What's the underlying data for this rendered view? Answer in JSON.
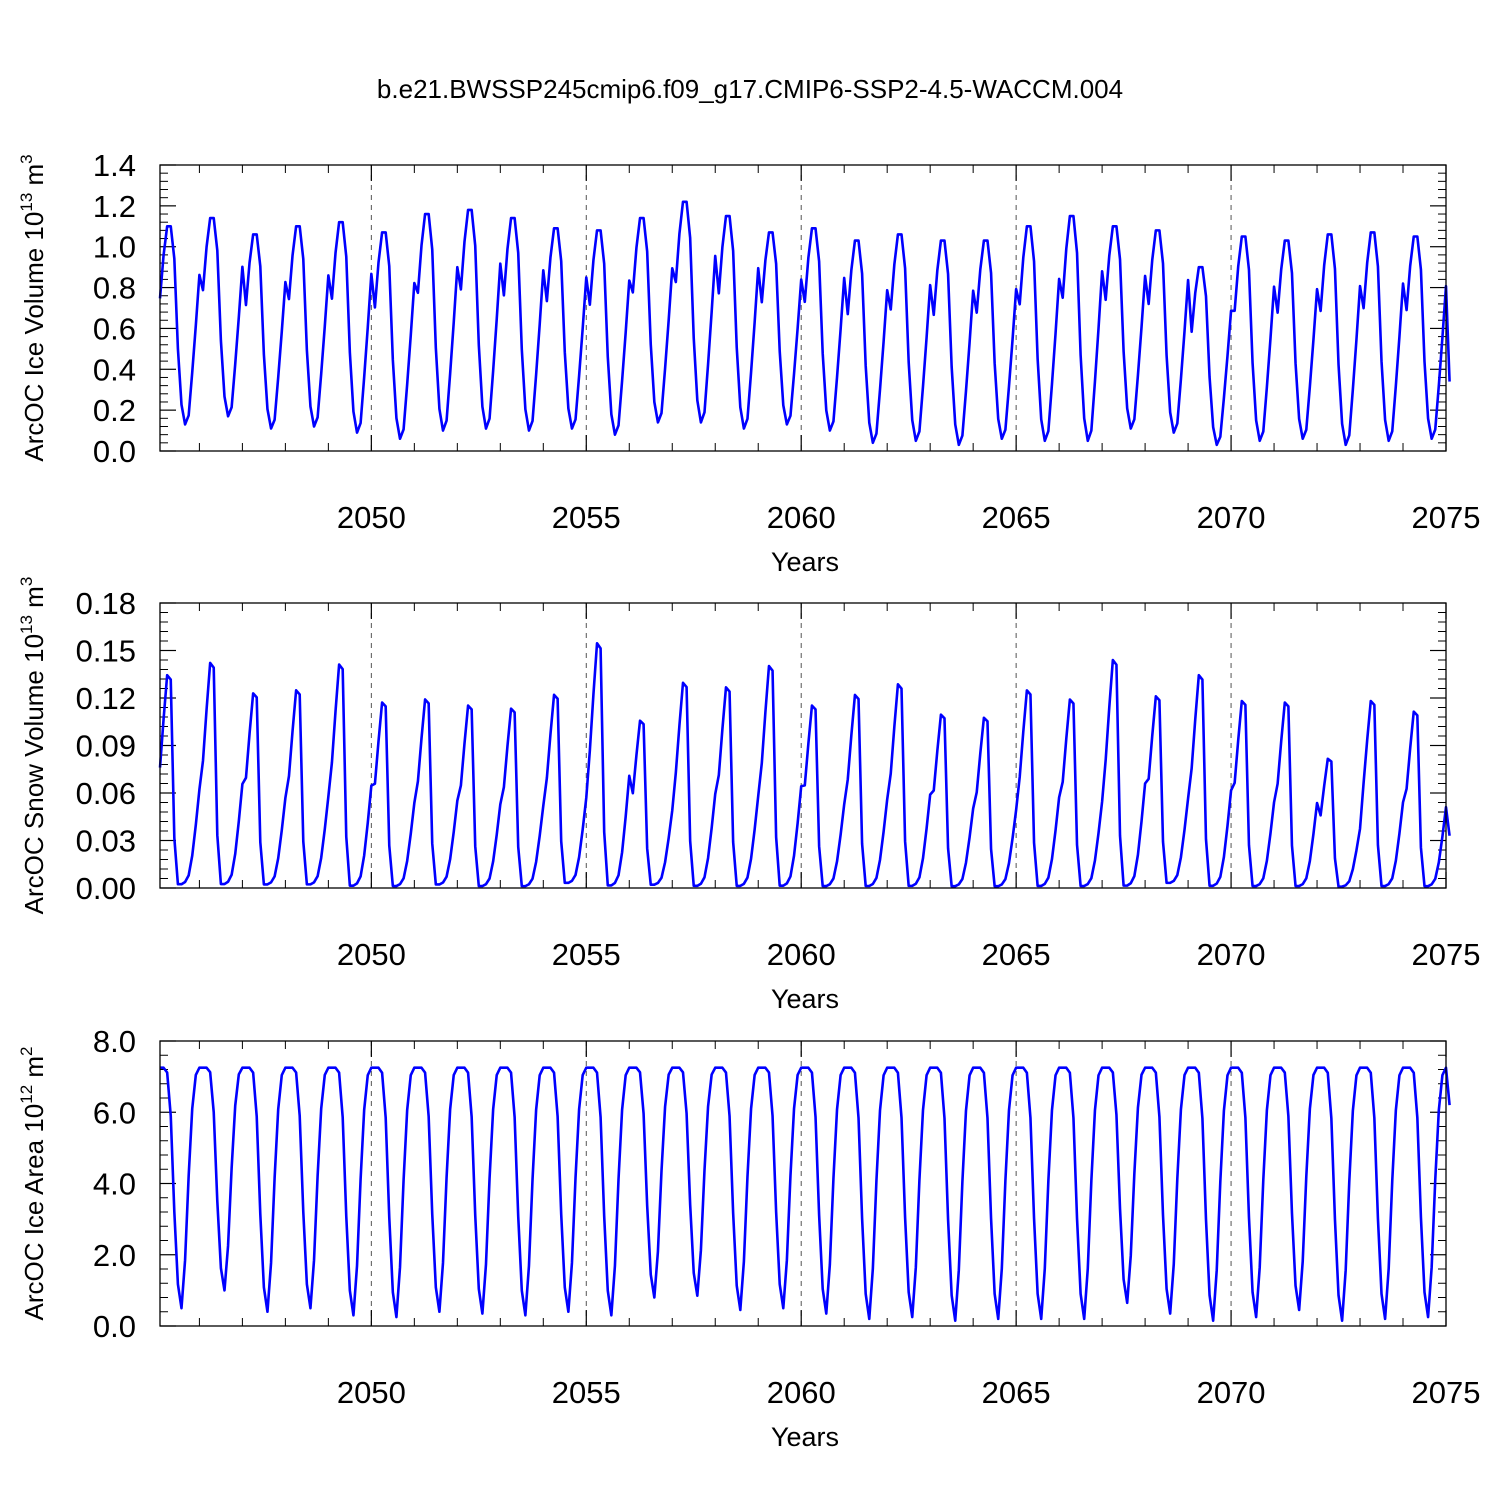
{
  "title": "b.e21.BWSSP245cmip6.f09_g17.CMIP6-SSP2-4.5-WACCM.004",
  "chart_data": [
    {
      "type": "line",
      "ylabel": {
        "prefix": "ArcOC Ice Volume 10",
        "exp": "13",
        "mid": " m",
        "unit_exp": "3"
      },
      "xlabel": "Years",
      "x_start": 2045.0833,
      "x_step": 0.083333,
      "xlim": [
        2045.0833,
        2075.0
      ],
      "ylim": [
        0.0,
        1.4
      ],
      "xticks": [
        2050,
        2055,
        2060,
        2065,
        2070,
        2075
      ],
      "yticks": [
        0.0,
        0.2,
        0.4,
        0.6,
        0.8,
        1.0,
        1.2,
        1.4
      ],
      "ytick_labels": [
        "0.0",
        "0.2",
        "0.4",
        "0.6",
        "0.8",
        "1.0",
        "1.2",
        "1.4"
      ],
      "grid": "vertical-dashed",
      "color": "#0000ff",
      "cycle": {
        "shape": [
          0.6364,
          0.8545,
          1.0,
          1.0,
          0.8364,
          0.3818,
          0.1,
          0.0,
          0.0455,
          0.2636,
          0.5,
          0.7545
        ],
        "peak": [
          1.1,
          1.14,
          1.06,
          1.1,
          1.12,
          1.07,
          1.16,
          1.18,
          1.14,
          1.09,
          1.08,
          1.14,
          1.22,
          1.15,
          1.07,
          1.09,
          1.03,
          1.06,
          1.03,
          1.03,
          1.1,
          1.15,
          1.1,
          1.08,
          0.9,
          1.05,
          1.03,
          1.06,
          1.07,
          1.05
        ],
        "trough": [
          0.13,
          0.17,
          0.11,
          0.12,
          0.09,
          0.06,
          0.1,
          0.11,
          0.1,
          0.11,
          0.08,
          0.14,
          0.14,
          0.11,
          0.13,
          0.1,
          0.04,
          0.05,
          0.03,
          0.06,
          0.05,
          0.05,
          0.11,
          0.09,
          0.03,
          0.05,
          0.06,
          0.03,
          0.05,
          0.06
        ],
        "end": 0.34
      }
    },
    {
      "type": "line",
      "ylabel": {
        "prefix": "ArcOC Snow Volume 10",
        "exp": "13",
        "mid": " m",
        "unit_exp": "3"
      },
      "xlabel": "Years",
      "x_start": 2045.0833,
      "x_step": 0.083333,
      "xlim": [
        2045.0833,
        2075.0
      ],
      "ylim": [
        0.0,
        0.18
      ],
      "xticks": [
        2050,
        2055,
        2060,
        2065,
        2070,
        2075
      ],
      "yticks": [
        0.0,
        0.03,
        0.06,
        0.09,
        0.12,
        0.15,
        0.18
      ],
      "ytick_labels": [
        "0.00",
        "0.03",
        "0.06",
        "0.09",
        "0.12",
        "0.15",
        "0.18"
      ],
      "grid": "vertical-dashed",
      "color": "#0000ff",
      "cycle": {
        "shape": [
          0.54,
          0.76,
          0.96,
          0.94,
          0.22,
          0.01,
          0.01,
          0.02,
          0.05,
          0.14,
          0.28,
          0.44
        ],
        "peak": [
          0.14,
          0.148,
          0.128,
          0.13,
          0.147,
          0.122,
          0.124,
          0.12,
          0.118,
          0.127,
          0.161,
          0.11,
          0.135,
          0.132,
          0.146,
          0.12,
          0.127,
          0.134,
          0.114,
          0.112,
          0.13,
          0.124,
          0.15,
          0.126,
          0.14,
          0.123,
          0.122,
          0.085,
          0.123,
          0.116
        ],
        "trough": [
          0.001,
          0.001,
          0.001,
          0.001,
          0.0,
          0.0,
          0.001,
          0.0,
          0.0,
          0.002,
          0.0,
          0.001,
          0.0,
          0.0,
          0.0,
          0.0,
          0.0,
          0.0,
          0.0,
          0.0,
          0.0,
          0.0,
          0.0,
          0.002,
          0.0,
          0.0,
          0.0,
          0.0,
          0.0,
          0.0
        ],
        "end": 0.033
      }
    },
    {
      "type": "line",
      "ylabel": {
        "prefix": "ArcOC Ice Area 10",
        "exp": "12",
        "mid": " m",
        "unit_exp": "2"
      },
      "xlabel": "Years",
      "x_start": 2045.0833,
      "x_step": 0.083333,
      "xlim": [
        2045.0833,
        2075.0
      ],
      "ylim": [
        0.0,
        8.0
      ],
      "xticks": [
        2050,
        2055,
        2060,
        2065,
        2070,
        2075
      ],
      "yticks": [
        0.0,
        2.0,
        4.0,
        6.0,
        8.0
      ],
      "ytick_labels": [
        "0.0",
        "2.0",
        "4.0",
        "6.0",
        "8.0"
      ],
      "grid": "vertical-dashed",
      "color": "#0000ff",
      "cycle": {
        "shape": [
          1.0,
          1.0,
          0.98,
          0.8,
          0.4,
          0.1,
          0.0,
          0.2,
          0.55,
          0.83,
          0.97,
          1.0
        ],
        "peak": [
          7.25,
          7.25,
          7.25,
          7.25,
          7.25,
          7.25,
          7.25,
          7.25,
          7.25,
          7.25,
          7.25,
          7.25,
          7.25,
          7.25,
          7.25,
          7.25,
          7.25,
          7.25,
          7.25,
          7.25,
          7.25,
          7.25,
          7.25,
          7.25,
          7.25,
          7.25,
          7.25,
          7.25,
          7.25,
          7.25
        ],
        "trough": [
          0.5,
          1.0,
          0.4,
          0.5,
          0.3,
          0.25,
          0.4,
          0.35,
          0.3,
          0.4,
          0.3,
          0.8,
          0.85,
          0.45,
          0.5,
          0.35,
          0.2,
          0.25,
          0.15,
          0.2,
          0.2,
          0.2,
          0.65,
          0.35,
          0.15,
          0.25,
          0.45,
          0.15,
          0.2,
          0.25
        ],
        "end": 6.2
      }
    }
  ]
}
